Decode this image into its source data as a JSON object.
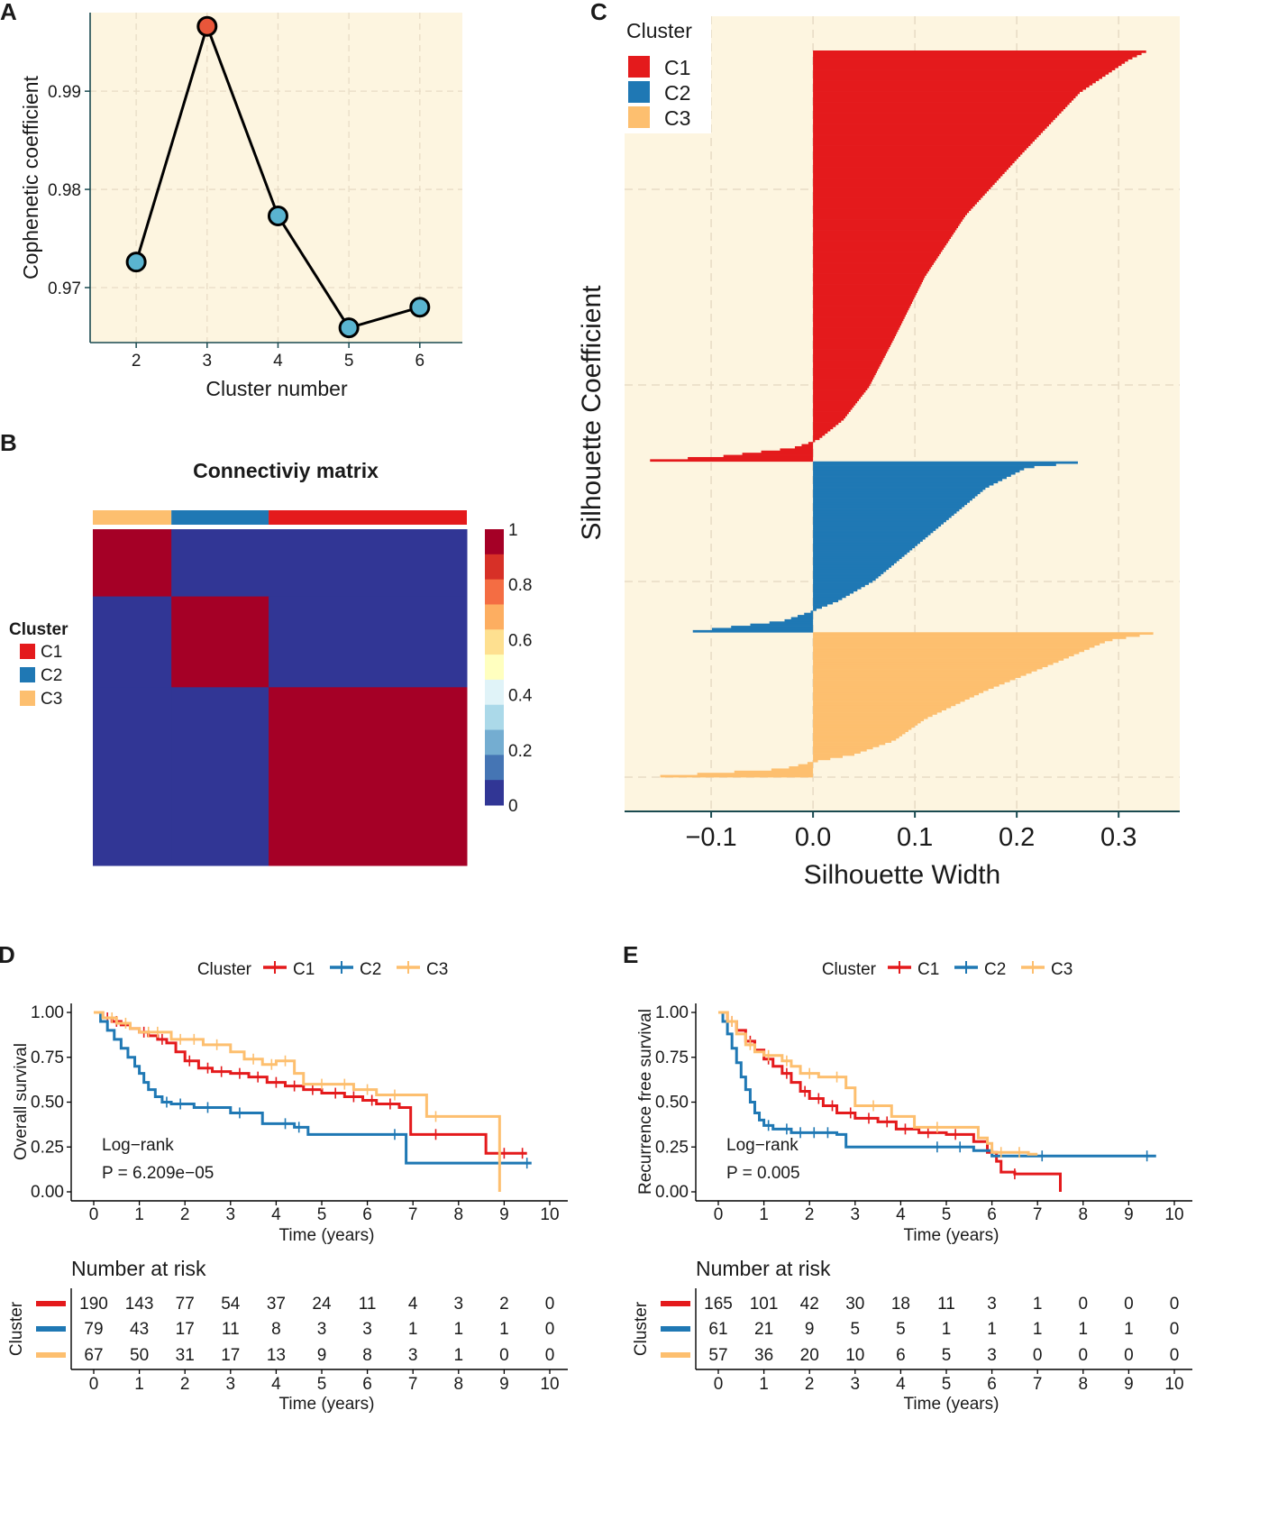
{
  "colors": {
    "C1": "#e41a1c",
    "C2": "#1f78b4",
    "C3": "#fdbf6f",
    "panel_bg": "#fdf5e0",
    "point_low": "#5ab4d0",
    "point_high": "#e8563a",
    "axis": "#1a4a50"
  },
  "chart_data": [
    {
      "panel": "A",
      "type": "line",
      "title": "",
      "xlabel": "Cluster number",
      "ylabel": "Cophenetic coefficient",
      "x": [
        2,
        3,
        4,
        5,
        6
      ],
      "y": [
        0.9726,
        0.9966,
        0.9773,
        0.9659,
        0.968
      ],
      "highlight_x": 3,
      "xlim": [
        1.35,
        6.6
      ],
      "ylim": [
        0.9644,
        0.998
      ],
      "yticks": [
        0.97,
        0.98,
        0.99
      ],
      "ytick_labels": [
        "0.97",
        "0.98",
        "0.99"
      ],
      "xticks": [
        2,
        3,
        4,
        5,
        6
      ],
      "xtick_labels": [
        "2",
        "3",
        "4",
        "5",
        "6"
      ],
      "grid": true
    },
    {
      "panel": "B",
      "type": "heatmap",
      "title": "Connectiviy matrix",
      "column_annotation": [
        {
          "cluster": "C3",
          "fraction": 0.21
        },
        {
          "cluster": "C2",
          "fraction": 0.26
        },
        {
          "cluster": "C1",
          "fraction": 0.53
        }
      ],
      "row_blocks": [
        {
          "cluster": "C3",
          "fraction": 0.2
        },
        {
          "cluster": "C2",
          "fraction": 0.27
        },
        {
          "cluster": "C1",
          "fraction": 0.53
        }
      ],
      "diagonal_value": 1,
      "off_diagonal_value": 0,
      "legend_title": "Cluster",
      "legend_entries": [
        "C1",
        "C2",
        "C3"
      ],
      "colorbar_ticks": [
        "1",
        "0.8",
        "0.6",
        "0.4",
        "0.2",
        "0"
      ],
      "colorbar_colors": [
        "#a50026",
        "#d73027",
        "#f46d43",
        "#fdae61",
        "#fee090",
        "#ffffbf",
        "#e0f3f8",
        "#abd9e9",
        "#74add1",
        "#4575b4",
        "#313695"
      ]
    },
    {
      "panel": "C",
      "type": "bar",
      "orientation": "horizontal",
      "title": "",
      "xlabel": "Silhouette Width",
      "ylabel": "Silhouette Coefficient",
      "xlim": [
        -0.185,
        0.36
      ],
      "xticks": [
        -0.1,
        0.0,
        0.1,
        0.2,
        0.3
      ],
      "xtick_labels": [
        "−0.1",
        "0.0",
        "0.1",
        "0.2",
        "0.3"
      ],
      "legend_title": "Cluster",
      "legend_entries": [
        "C1",
        "C2",
        "C3"
      ],
      "series": [
        {
          "name": "C1",
          "n": 190,
          "profile": [
            [
              0,
              0.327
            ],
            [
              0.02,
              0.31
            ],
            [
              0.1,
              0.262
            ],
            [
              0.25,
              0.205
            ],
            [
              0.4,
              0.15
            ],
            [
              0.55,
              0.11
            ],
            [
              0.7,
              0.08
            ],
            [
              0.82,
              0.055
            ],
            [
              0.9,
              0.03
            ],
            [
              0.95,
              0.005
            ],
            [
              0.97,
              -0.02
            ],
            [
              0.99,
              -0.09
            ],
            [
              1.0,
              -0.16
            ]
          ]
        },
        {
          "name": "C2",
          "n": 79,
          "profile": [
            [
              0,
              0.26
            ],
            [
              0.03,
              0.21
            ],
            [
              0.15,
              0.17
            ],
            [
              0.3,
              0.14
            ],
            [
              0.5,
              0.1
            ],
            [
              0.7,
              0.06
            ],
            [
              0.82,
              0.025
            ],
            [
              0.88,
              0.0
            ],
            [
              0.94,
              -0.03
            ],
            [
              1.0,
              -0.118
            ]
          ]
        },
        {
          "name": "C3",
          "n": 67,
          "profile": [
            [
              0,
              0.334
            ],
            [
              0.05,
              0.29
            ],
            [
              0.2,
              0.24
            ],
            [
              0.4,
              0.17
            ],
            [
              0.6,
              0.11
            ],
            [
              0.75,
              0.08
            ],
            [
              0.85,
              0.04
            ],
            [
              0.9,
              0.0
            ],
            [
              0.95,
              -0.03
            ],
            [
              1.0,
              -0.15
            ]
          ]
        }
      ]
    },
    {
      "panel": "D",
      "type": "line",
      "subtype": "kaplan-meier",
      "xlabel": "Time (years)",
      "ylabel": "Overall survival",
      "xlim": [
        0,
        10
      ],
      "ylim": [
        0,
        1
      ],
      "xticks": [
        0,
        1,
        2,
        3,
        4,
        5,
        6,
        7,
        8,
        9,
        10
      ],
      "yticks": [
        0,
        0.25,
        0.5,
        0.75,
        1.0
      ],
      "ytick_labels": [
        "0.00",
        "0.25",
        "0.50",
        "0.75",
        "1.00"
      ],
      "legend_title": "Cluster",
      "legend_entries": [
        "C1",
        "C2",
        "C3"
      ],
      "annotation": [
        "Log−rank",
        "P = 6.209e−05"
      ],
      "series": [
        {
          "name": "C1",
          "steps": [
            [
              0,
              1.0
            ],
            [
              0.2,
              0.97
            ],
            [
              0.4,
              0.95
            ],
            [
              0.6,
              0.93
            ],
            [
              0.8,
              0.91
            ],
            [
              1.0,
              0.89
            ],
            [
              1.2,
              0.87
            ],
            [
              1.4,
              0.85
            ],
            [
              1.6,
              0.83
            ],
            [
              1.8,
              0.78
            ],
            [
              2.0,
              0.73
            ],
            [
              2.3,
              0.69
            ],
            [
              2.6,
              0.67
            ],
            [
              3.0,
              0.66
            ],
            [
              3.4,
              0.64
            ],
            [
              3.8,
              0.61
            ],
            [
              4.2,
              0.59
            ],
            [
              4.6,
              0.57
            ],
            [
              5.0,
              0.55
            ],
            [
              5.5,
              0.53
            ],
            [
              5.9,
              0.51
            ],
            [
              6.2,
              0.49
            ],
            [
              6.7,
              0.47
            ],
            [
              6.95,
              0.32
            ],
            [
              8.6,
              0.215
            ],
            [
              9.5,
              0.215
            ]
          ],
          "censor": [
            0.3,
            0.5,
            1.1,
            1.5,
            2.1,
            2.5,
            2.8,
            3.2,
            3.6,
            4.0,
            4.4,
            4.8,
            5.3,
            5.7,
            6.1,
            6.5,
            7.5,
            9.0,
            9.4
          ]
        },
        {
          "name": "C2",
          "steps": [
            [
              0,
              1.0
            ],
            [
              0.15,
              0.95
            ],
            [
              0.3,
              0.9
            ],
            [
              0.45,
              0.85
            ],
            [
              0.6,
              0.8
            ],
            [
              0.75,
              0.75
            ],
            [
              0.9,
              0.7
            ],
            [
              1.0,
              0.66
            ],
            [
              1.1,
              0.61
            ],
            [
              1.2,
              0.57
            ],
            [
              1.35,
              0.53
            ],
            [
              1.5,
              0.5
            ],
            [
              1.7,
              0.49
            ],
            [
              2.2,
              0.47
            ],
            [
              3.0,
              0.44
            ],
            [
              3.7,
              0.38
            ],
            [
              4.4,
              0.36
            ],
            [
              4.7,
              0.32
            ],
            [
              6.85,
              0.16
            ],
            [
              9.6,
              0.16
            ]
          ],
          "censor": [
            1.6,
            1.9,
            2.5,
            3.2,
            4.2,
            4.5,
            6.6,
            9.5
          ]
        },
        {
          "name": "C3",
          "steps": [
            [
              0,
              1.0
            ],
            [
              0.2,
              0.97
            ],
            [
              0.5,
              0.94
            ],
            [
              0.8,
              0.91
            ],
            [
              1.0,
              0.89
            ],
            [
              1.7,
              0.85
            ],
            [
              2.4,
              0.82
            ],
            [
              3.0,
              0.78
            ],
            [
              3.3,
              0.74
            ],
            [
              3.7,
              0.71
            ],
            [
              4.0,
              0.73
            ],
            [
              4.4,
              0.66
            ],
            [
              4.6,
              0.6
            ],
            [
              5.7,
              0.57
            ],
            [
              6.2,
              0.54
            ],
            [
              7.3,
              0.42
            ],
            [
              8.9,
              0.0
            ]
          ],
          "censor": [
            0.4,
            0.7,
            1.2,
            1.4,
            1.9,
            2.2,
            2.7,
            3.5,
            3.9,
            4.2,
            5.0,
            5.5,
            6.0,
            6.6,
            7.5
          ]
        }
      ],
      "risk_table": {
        "title": "Number at risk",
        "row_label": "Cluster",
        "times": [
          "0",
          "1",
          "2",
          "3",
          "4",
          "5",
          "6",
          "7",
          "8",
          "9",
          "10"
        ],
        "rows": [
          {
            "name": "C1",
            "values": [
              "190",
              "143",
              "77",
              "54",
              "37",
              "24",
              "11",
              "4",
              "3",
              "2",
              "0"
            ]
          },
          {
            "name": "C2",
            "values": [
              "79",
              "43",
              "17",
              "11",
              "8",
              "3",
              "3",
              "1",
              "1",
              "1",
              "0"
            ]
          },
          {
            "name": "C3",
            "values": [
              "67",
              "50",
              "31",
              "17",
              "13",
              "9",
              "8",
              "3",
              "1",
              "0",
              "0"
            ]
          }
        ]
      }
    },
    {
      "panel": "E",
      "type": "line",
      "subtype": "kaplan-meier",
      "xlabel": "Time (years)",
      "ylabel": "Recurrence free survival",
      "xlim": [
        0,
        10
      ],
      "ylim": [
        0,
        1
      ],
      "xticks": [
        0,
        1,
        2,
        3,
        4,
        5,
        6,
        7,
        8,
        9,
        10
      ],
      "yticks": [
        0,
        0.25,
        0.5,
        0.75,
        1.0
      ],
      "ytick_labels": [
        "0.00",
        "0.25",
        "0.50",
        "0.75",
        "1.00"
      ],
      "legend_title": "Cluster",
      "legend_entries": [
        "C1",
        "C2",
        "C3"
      ],
      "annotation": [
        "Log−rank",
        "P = 0.005"
      ],
      "series": [
        {
          "name": "C1",
          "steps": [
            [
              0,
              1.0
            ],
            [
              0.2,
              0.95
            ],
            [
              0.4,
              0.9
            ],
            [
              0.6,
              0.84
            ],
            [
              0.8,
              0.79
            ],
            [
              1.0,
              0.74
            ],
            [
              1.2,
              0.7
            ],
            [
              1.4,
              0.66
            ],
            [
              1.6,
              0.61
            ],
            [
              1.8,
              0.56
            ],
            [
              2.0,
              0.52
            ],
            [
              2.3,
              0.48
            ],
            [
              2.6,
              0.44
            ],
            [
              3.0,
              0.41
            ],
            [
              3.5,
              0.39
            ],
            [
              3.9,
              0.35
            ],
            [
              4.4,
              0.33
            ],
            [
              5.0,
              0.32
            ],
            [
              5.6,
              0.28
            ],
            [
              5.9,
              0.22
            ],
            [
              6.1,
              0.17
            ],
            [
              6.2,
              0.11
            ],
            [
              6.5,
              0.1
            ],
            [
              7.5,
              0.1
            ],
            [
              7.5,
              0.0
            ]
          ],
          "censor": [
            0.3,
            0.7,
            1.1,
            1.5,
            1.9,
            2.2,
            2.5,
            2.9,
            3.3,
            3.7,
            4.1,
            4.6,
            5.2,
            6.5
          ]
        },
        {
          "name": "C2",
          "steps": [
            [
              0,
              1.0
            ],
            [
              0.1,
              0.95
            ],
            [
              0.2,
              0.88
            ],
            [
              0.3,
              0.8
            ],
            [
              0.4,
              0.72
            ],
            [
              0.5,
              0.64
            ],
            [
              0.6,
              0.57
            ],
            [
              0.7,
              0.5
            ],
            [
              0.8,
              0.44
            ],
            [
              0.9,
              0.4
            ],
            [
              1.0,
              0.37
            ],
            [
              1.2,
              0.35
            ],
            [
              1.6,
              0.33
            ],
            [
              2.6,
              0.32
            ],
            [
              2.8,
              0.25
            ],
            [
              5.6,
              0.23
            ],
            [
              6.0,
              0.2
            ],
            [
              9.6,
              0.2
            ]
          ],
          "censor": [
            1.1,
            1.5,
            1.8,
            2.1,
            2.4,
            4.8,
            5.3,
            7.1,
            9.4
          ]
        },
        {
          "name": "C3",
          "steps": [
            [
              0,
              1.0
            ],
            [
              0.2,
              0.95
            ],
            [
              0.4,
              0.88
            ],
            [
              0.6,
              0.82
            ],
            [
              0.8,
              0.78
            ],
            [
              1.0,
              0.76
            ],
            [
              1.4,
              0.73
            ],
            [
              1.6,
              0.7
            ],
            [
              1.8,
              0.66
            ],
            [
              2.2,
              0.64
            ],
            [
              2.8,
              0.58
            ],
            [
              3.0,
              0.48
            ],
            [
              3.8,
              0.42
            ],
            [
              4.3,
              0.36
            ],
            [
              5.7,
              0.3
            ],
            [
              5.9,
              0.27
            ],
            [
              6.0,
              0.22
            ],
            [
              6.8,
              0.21
            ],
            [
              7.0,
              0.21
            ]
          ],
          "censor": [
            0.3,
            0.7,
            1.1,
            1.5,
            2.0,
            2.6,
            3.4,
            4.8,
            6.2,
            6.6
          ]
        }
      ],
      "risk_table": {
        "title": "Number at risk",
        "row_label": "Cluster",
        "times": [
          "0",
          "1",
          "2",
          "3",
          "4",
          "5",
          "6",
          "7",
          "8",
          "9",
          "10"
        ],
        "rows": [
          {
            "name": "C1",
            "values": [
              "165",
              "101",
              "42",
              "30",
              "18",
              "11",
              "3",
              "1",
              "0",
              "0",
              "0"
            ]
          },
          {
            "name": "C2",
            "values": [
              "61",
              "21",
              "9",
              "5",
              "5",
              "1",
              "1",
              "1",
              "1",
              "1",
              "0"
            ]
          },
          {
            "name": "C3",
            "values": [
              "57",
              "36",
              "20",
              "10",
              "6",
              "5",
              "3",
              "0",
              "0",
              "0",
              "0"
            ]
          }
        ]
      }
    }
  ]
}
